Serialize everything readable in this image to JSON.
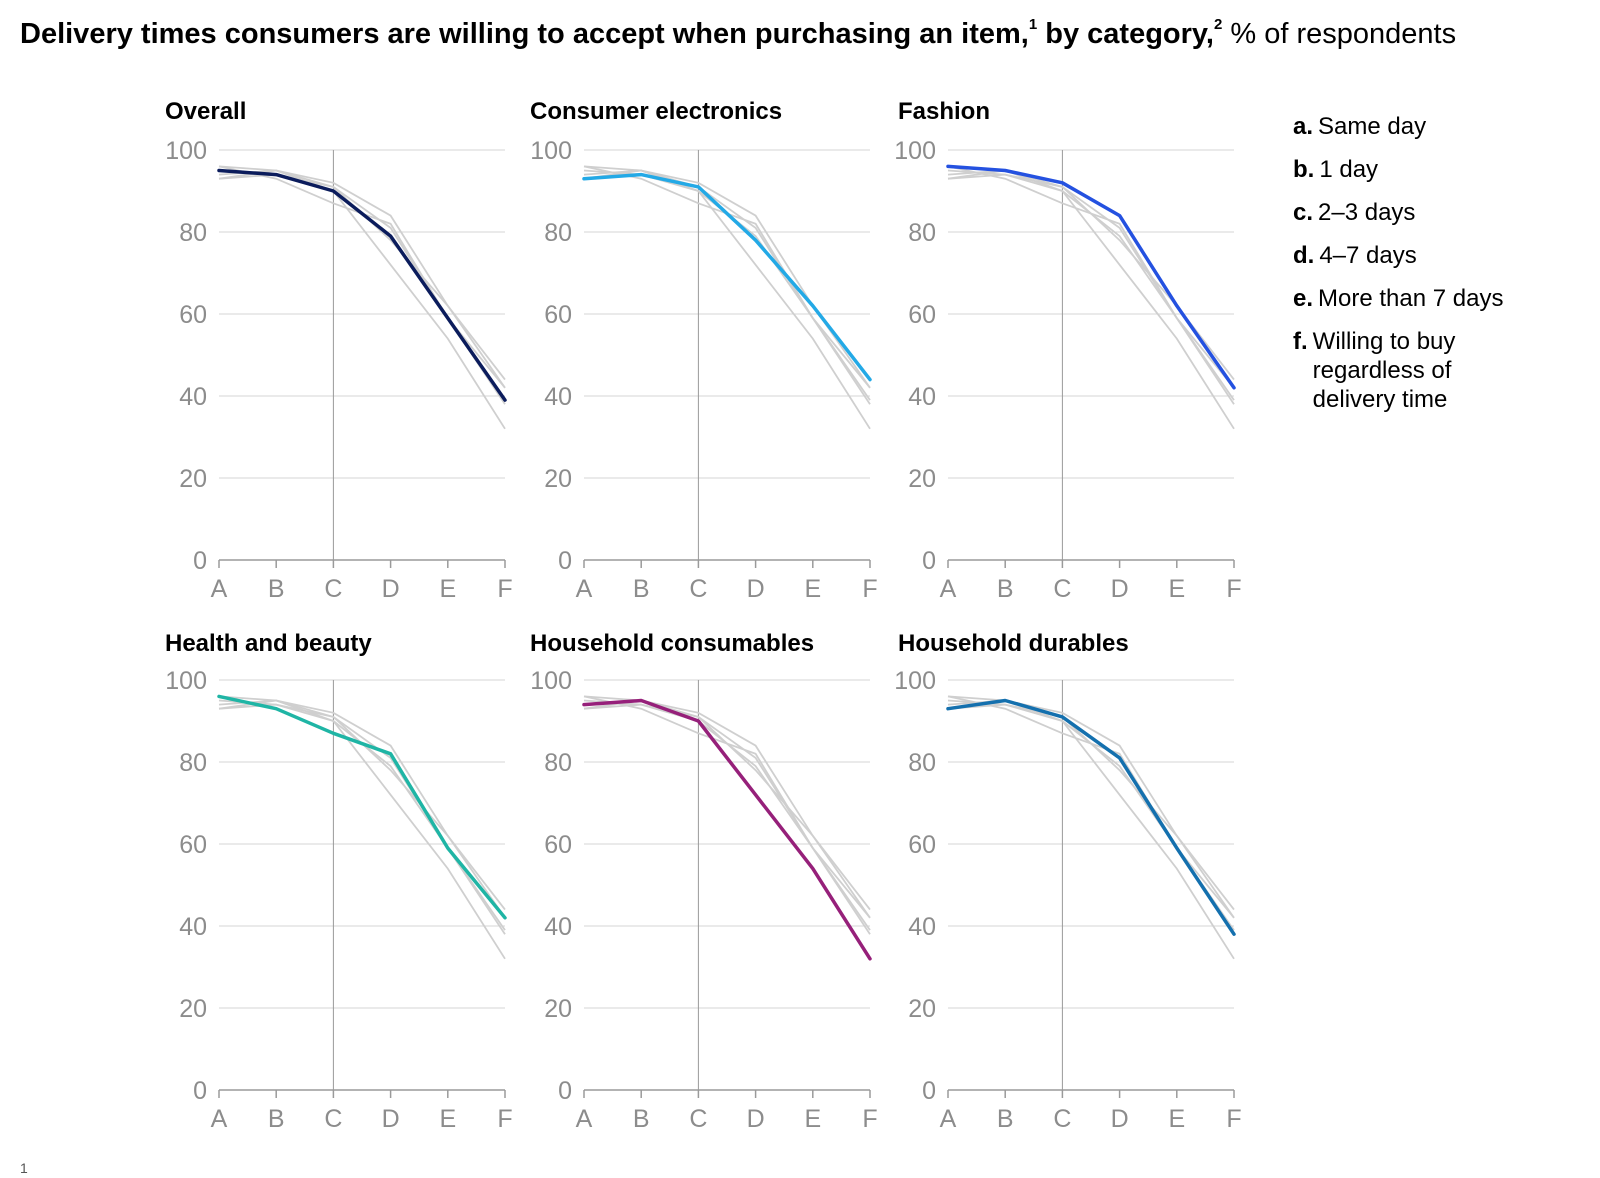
{
  "title": {
    "main": "Delivery times consumers are willing to accept when purchasing an item,",
    "sup1": "1",
    "mid": " by category,",
    "sup2": "2",
    "unit": " % of respondents"
  },
  "legend": [
    {
      "letter": "a.",
      "text": "Same day"
    },
    {
      "letter": "b.",
      "text": "1 day"
    },
    {
      "letter": "c.",
      "text": "2–3 days"
    },
    {
      "letter": "d.",
      "text": "4–7 days"
    },
    {
      "letter": "e.",
      "text": "More than 7 days"
    },
    {
      "letter": "f.",
      "text": "Willing to buy regardless of delivery time"
    }
  ],
  "footnote": "1",
  "colors": {
    "grid": "#d4d4d4",
    "axis": "#9a9a9a",
    "ghost": "#cfcfcf",
    "tick_text": "#8c8c8c"
  },
  "chart_data": [
    {
      "type": "line",
      "title": "Overall",
      "categories": [
        "A",
        "B",
        "C",
        "D",
        "E",
        "F"
      ],
      "ylim": [
        0,
        100
      ],
      "yticks": [
        0,
        20,
        40,
        60,
        80,
        100
      ],
      "color": "#0b1c5c",
      "values": [
        95,
        94,
        90,
        79,
        59,
        39
      ]
    },
    {
      "type": "line",
      "title": "Consumer electronics",
      "categories": [
        "A",
        "B",
        "C",
        "D",
        "E",
        "F"
      ],
      "ylim": [
        0,
        100
      ],
      "yticks": [
        0,
        20,
        40,
        60,
        80,
        100
      ],
      "color": "#23a9e6",
      "values": [
        93,
        94,
        91,
        78,
        62,
        44
      ]
    },
    {
      "type": "line",
      "title": "Fashion",
      "categories": [
        "A",
        "B",
        "C",
        "D",
        "E",
        "F"
      ],
      "ylim": [
        0,
        100
      ],
      "yticks": [
        0,
        20,
        40,
        60,
        80,
        100
      ],
      "color": "#2451e0",
      "values": [
        96,
        95,
        92,
        84,
        62,
        42
      ]
    },
    {
      "type": "line",
      "title": "Health and beauty",
      "categories": [
        "A",
        "B",
        "C",
        "D",
        "E",
        "F"
      ],
      "ylim": [
        0,
        100
      ],
      "yticks": [
        0,
        20,
        40,
        60,
        80,
        100
      ],
      "color": "#1fb5a5",
      "values": [
        96,
        93,
        87,
        82,
        59,
        42
      ]
    },
    {
      "type": "line",
      "title": "Household consumables",
      "categories": [
        "A",
        "B",
        "C",
        "D",
        "E",
        "F"
      ],
      "ylim": [
        0,
        100
      ],
      "yticks": [
        0,
        20,
        40,
        60,
        80,
        100
      ],
      "color": "#96207a",
      "values": [
        94,
        95,
        90,
        72,
        54,
        32
      ]
    },
    {
      "type": "line",
      "title": "Household durables",
      "categories": [
        "A",
        "B",
        "C",
        "D",
        "E",
        "F"
      ],
      "ylim": [
        0,
        100
      ],
      "yticks": [
        0,
        20,
        40,
        60,
        80,
        100
      ],
      "color": "#1470ae",
      "values": [
        93,
        95,
        91,
        81,
        59,
        38
      ]
    }
  ]
}
